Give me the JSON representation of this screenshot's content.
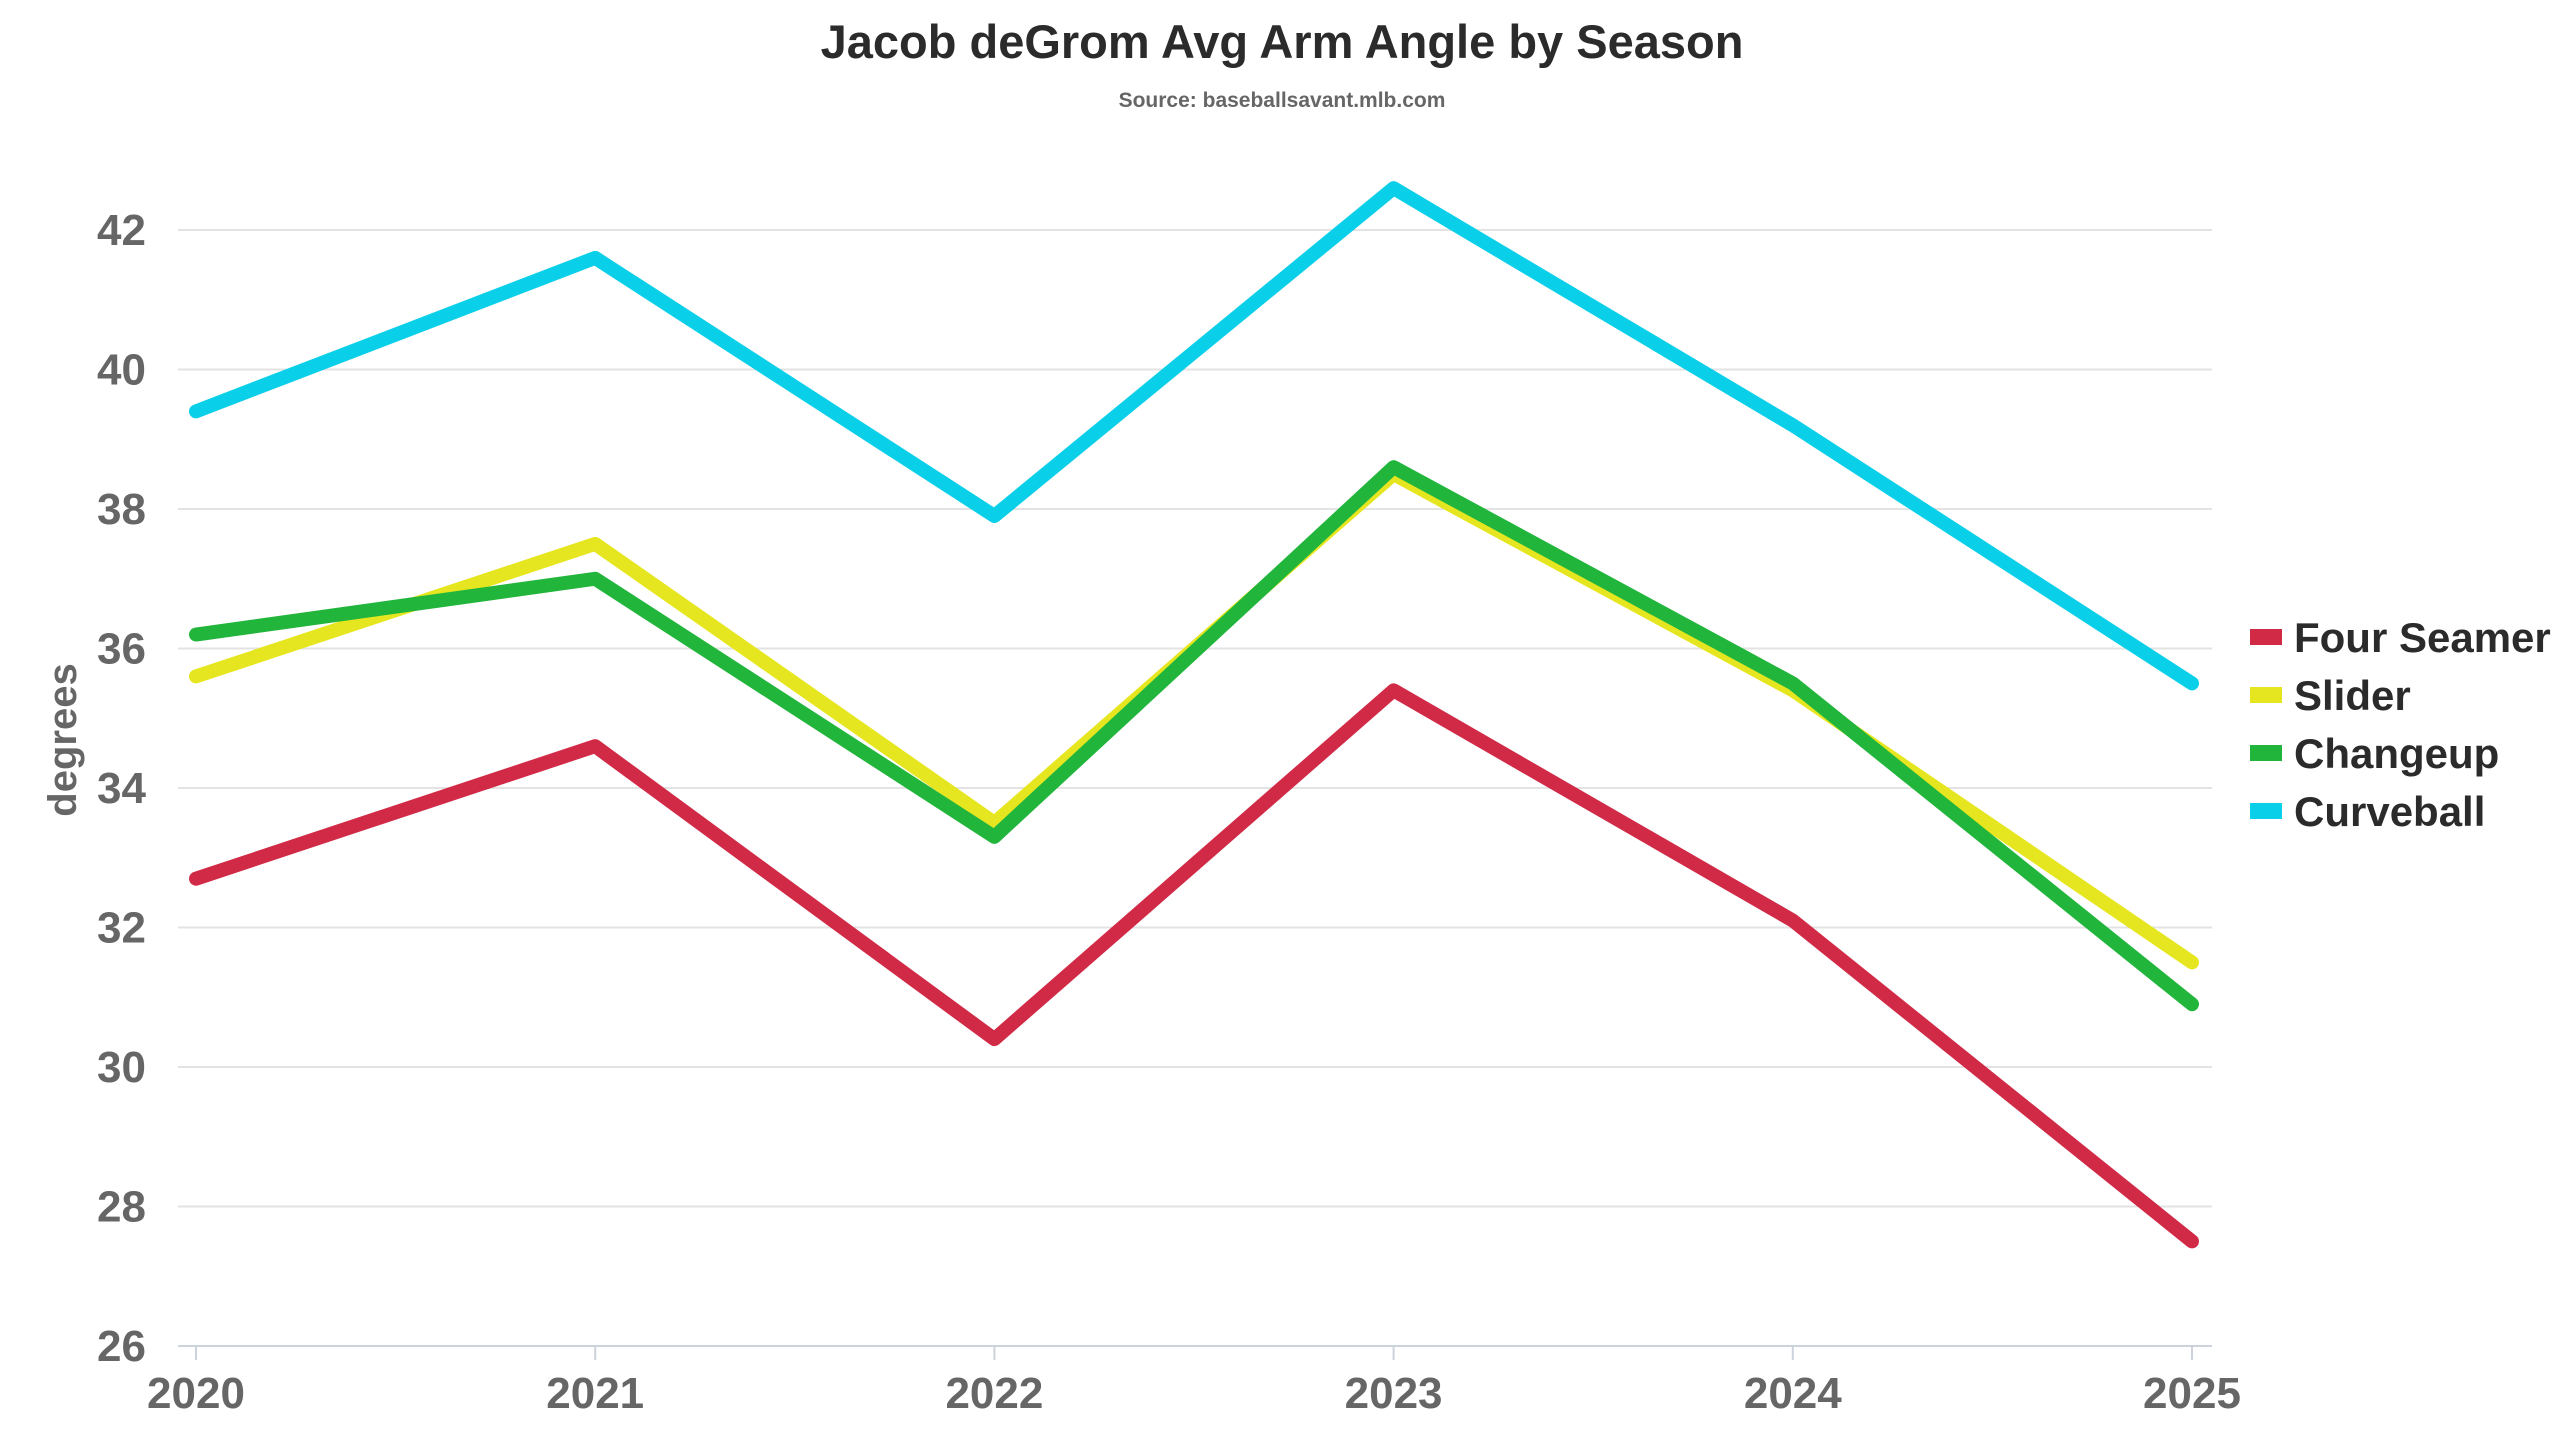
{
  "chart_data": {
    "type": "line",
    "title": "Jacob deGrom Avg Arm Angle by Season",
    "subtitle": "Source: baseballsavant.mlb.com",
    "xlabel": "",
    "ylabel": "degrees",
    "x": [
      "2020",
      "2021",
      "2022",
      "2023",
      "2024",
      "2025"
    ],
    "ylim": [
      26,
      43
    ],
    "yticks": [
      26,
      28,
      30,
      32,
      34,
      36,
      38,
      40,
      42
    ],
    "grid": true,
    "legend_position": "right",
    "series": [
      {
        "name": "Four Seamer",
        "color": "#d12a47",
        "values": [
          32.7,
          34.6,
          30.4,
          35.4,
          32.1,
          27.5
        ]
      },
      {
        "name": "Slider",
        "color": "#e6e620",
        "values": [
          35.6,
          37.5,
          33.5,
          38.5,
          35.4,
          31.5
        ]
      },
      {
        "name": "Changeup",
        "color": "#22b53b",
        "values": [
          36.2,
          37.0,
          33.3,
          38.6,
          35.5,
          30.9
        ]
      },
      {
        "name": "Curveball",
        "color": "#0acfe8",
        "values": [
          39.4,
          41.6,
          37.9,
          42.6,
          39.2,
          35.5
        ]
      }
    ]
  }
}
